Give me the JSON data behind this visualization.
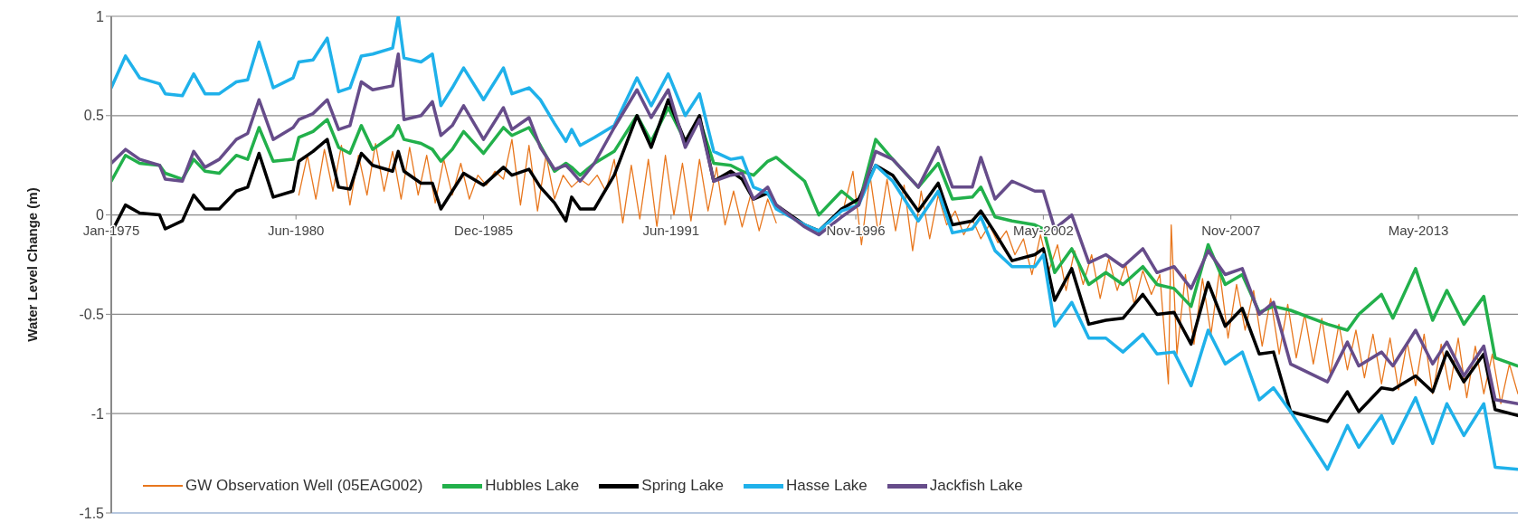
{
  "chart_data": {
    "type": "line",
    "ylabel": "Water Level Change (m)",
    "xlim": [
      "1975-01",
      "2016-04"
    ],
    "xticks": [
      {
        "value": "1975-01",
        "label": "Jan-1975"
      },
      {
        "value": "1980-06",
        "label": "Jun-1980"
      },
      {
        "value": "1985-12",
        "label": "Dec-1985"
      },
      {
        "value": "1991-06",
        "label": "Jun-1991"
      },
      {
        "value": "1996-11",
        "label": "Nov-1996"
      },
      {
        "value": "2002-05",
        "label": "May-2002"
      },
      {
        "value": "2007-11",
        "label": "Nov-2007"
      },
      {
        "value": "2013-05",
        "label": "May-2013"
      }
    ],
    "ylim": [
      -1.5,
      1
    ],
    "yticks": [
      -1.5,
      -1,
      -0.5,
      0,
      0.5,
      1
    ],
    "grid": "y",
    "legend": "bottom",
    "marker": "none",
    "line_style": "solid",
    "x": [
      "1975-01",
      "1975-06",
      "1975-11",
      "1976-06",
      "1976-08",
      "1977-02",
      "1977-06",
      "1977-10",
      "1978-03",
      "1978-09",
      "1979-01",
      "1979-05",
      "1979-10",
      "1980-05",
      "1980-07",
      "1980-12",
      "1981-05",
      "1981-09",
      "1982-01",
      "1982-05",
      "1982-09",
      "1983-04",
      "1983-06",
      "1983-08",
      "1984-02",
      "1984-06",
      "1984-09",
      "1985-01",
      "1985-05",
      "1985-12",
      "1986-07",
      "1986-10",
      "1987-04",
      "1987-08",
      "1988-01",
      "1988-05",
      "1988-07",
      "1988-10",
      "1989-03",
      "1989-10",
      "1990-06",
      "1990-11",
      "1991-05",
      "1991-11",
      "1992-04",
      "1992-09",
      "1993-03",
      "1993-07",
      "1993-11",
      "1994-04",
      "1994-07",
      "1995-05",
      "1995-10",
      "1996-06",
      "1996-12",
      "1997-06",
      "1997-12",
      "1998-09",
      "1999-04",
      "1999-09",
      "2000-04",
      "2000-07",
      "2000-12",
      "2001-06",
      "2002-02",
      "2002-05",
      "2002-09",
      "2003-03",
      "2003-09",
      "2004-03",
      "2004-09",
      "2005-04",
      "2005-09",
      "2006-03",
      "2006-09",
      "2007-03",
      "2007-09",
      "2008-03",
      "2008-09",
      "2009-02",
      "2009-08",
      "2010-09",
      "2011-04",
      "2011-08",
      "2012-04",
      "2012-08",
      "2013-04",
      "2013-10",
      "2014-03",
      "2014-09",
      "2015-04",
      "2015-08",
      "2016-04"
    ],
    "series": [
      {
        "name": "GW Observation Well (05EAG002)",
        "color": "#e8771e",
        "x": [
          "1980-07",
          "1980-10",
          "1981-01",
          "1981-04",
          "1981-07",
          "1981-10",
          "1982-01",
          "1982-04",
          "1982-07",
          "1982-10",
          "1983-01",
          "1983-04",
          "1983-07",
          "1983-10",
          "1984-01",
          "1984-04",
          "1984-07",
          "1984-10",
          "1985-01",
          "1985-04",
          "1985-07",
          "1985-10",
          "1986-01",
          "1986-04",
          "1986-07",
          "1986-10",
          "1987-01",
          "1987-04",
          "1987-07",
          "1987-10",
          "1988-01",
          "1988-04",
          "1988-07",
          "1988-10",
          "1989-01",
          "1989-04",
          "1989-07",
          "1989-10",
          "1990-01",
          "1990-04",
          "1990-07",
          "1990-10",
          "1991-01",
          "1991-04",
          "1991-07",
          "1991-10",
          "1992-01",
          "1992-04",
          "1992-07",
          "1992-10",
          "1993-01",
          "1993-04",
          "1993-07",
          "1993-10",
          "1994-01",
          "1994-04",
          "1994-07",
          "1995-07",
          "1996-07",
          "1996-10",
          "1997-01",
          "1997-04",
          "1997-07",
          "1997-10",
          "1998-01",
          "1998-04",
          "1998-07",
          "1998-10",
          "1999-01",
          "1999-04",
          "1999-07",
          "1999-10",
          "2000-01",
          "2000-04",
          "2000-07",
          "2000-10",
          "2001-01",
          "2001-04",
          "2001-07",
          "2001-10",
          "2002-01",
          "2002-04",
          "2002-07",
          "2002-10",
          "2003-01",
          "2003-04",
          "2003-07",
          "2003-10",
          "2004-01",
          "2004-04",
          "2004-07",
          "2004-10",
          "2005-01",
          "2005-04",
          "2005-07",
          "2005-10",
          "2006-01",
          "2006-02",
          "2006-04",
          "2006-07",
          "2006-10",
          "2007-01",
          "2007-04",
          "2007-07",
          "2007-10",
          "2008-01",
          "2008-04",
          "2008-07",
          "2008-10",
          "2009-01",
          "2009-04",
          "2009-07",
          "2009-10",
          "2010-01",
          "2010-04",
          "2010-07",
          "2010-10",
          "2011-01",
          "2011-04",
          "2011-07",
          "2011-10",
          "2012-01",
          "2012-04",
          "2012-07",
          "2012-10",
          "2013-01",
          "2013-04",
          "2013-07",
          "2013-10",
          "2014-01",
          "2014-04",
          "2014-07",
          "2014-10",
          "2015-01",
          "2015-04",
          "2015-07",
          "2015-10",
          "2016-01",
          "2016-04"
        ],
        "values": [
          0.1,
          0.3,
          0.08,
          0.33,
          0.12,
          0.35,
          0.05,
          0.3,
          0.1,
          0.36,
          0.12,
          0.32,
          0.08,
          0.34,
          0.1,
          0.3,
          0.06,
          0.28,
          0.1,
          0.26,
          0.08,
          0.2,
          0.15,
          0.22,
          0.18,
          0.38,
          0.05,
          0.35,
          0.02,
          0.3,
          0.08,
          0.2,
          0.14,
          0.18,
          0.15,
          0.2,
          0.12,
          0.28,
          -0.04,
          0.25,
          -0.02,
          0.28,
          -0.06,
          0.3,
          0.0,
          0.26,
          -0.03,
          0.28,
          0.02,
          0.24,
          -0.05,
          0.12,
          -0.06,
          0.1,
          -0.08,
          0.08,
          -0.04,
          null,
          0.05,
          0.22,
          -0.15,
          0.2,
          -0.1,
          0.18,
          -0.08,
          0.15,
          -0.18,
          0.12,
          -0.12,
          0.1,
          -0.05,
          0.02,
          -0.1,
          -0.02,
          -0.12,
          -0.05,
          -0.14,
          -0.08,
          -0.2,
          -0.12,
          -0.3,
          -0.1,
          -0.28,
          -0.15,
          -0.38,
          -0.18,
          -0.35,
          -0.2,
          -0.42,
          -0.22,
          -0.38,
          -0.25,
          -0.45,
          -0.28,
          -0.4,
          -0.3,
          -0.85,
          -0.05,
          -0.7,
          -0.3,
          -0.65,
          -0.32,
          -0.6,
          -0.28,
          -0.62,
          -0.35,
          -0.58,
          -0.38,
          -0.66,
          -0.42,
          -0.7,
          -0.45,
          -0.72,
          -0.5,
          -0.75,
          -0.52,
          -0.8,
          -0.55,
          -0.78,
          -0.58,
          -0.82,
          -0.6,
          -0.85,
          -0.62,
          -0.88,
          -0.64,
          -0.86,
          -0.6,
          -0.9,
          -0.65,
          -0.88,
          -0.62,
          -0.92,
          -0.66,
          -0.9,
          -0.7,
          -0.95,
          -0.75,
          -0.9
        ]
      },
      {
        "name": "Hubbles Lake",
        "color": "#22b04b",
        "values": [
          0.17,
          0.3,
          0.26,
          0.25,
          0.21,
          0.18,
          0.28,
          0.22,
          0.21,
          0.3,
          0.28,
          0.44,
          0.27,
          0.28,
          0.39,
          0.42,
          0.48,
          0.34,
          0.31,
          0.45,
          0.33,
          0.4,
          0.45,
          0.38,
          0.36,
          0.33,
          0.27,
          0.33,
          0.42,
          0.31,
          0.44,
          0.4,
          0.44,
          0.35,
          0.22,
          0.26,
          0.24,
          0.2,
          0.26,
          0.32,
          0.5,
          0.37,
          0.54,
          0.37,
          0.48,
          0.26,
          0.25,
          0.22,
          0.2,
          0.27,
          0.29,
          0.17,
          0.0,
          0.12,
          0.05,
          0.38,
          0.28,
          0.14,
          0.26,
          0.08,
          0.09,
          0.14,
          -0.01,
          -0.03,
          -0.05,
          -0.07,
          -0.29,
          -0.17,
          -0.35,
          -0.29,
          -0.35,
          -0.26,
          -0.35,
          -0.37,
          -0.46,
          -0.15,
          -0.35,
          -0.3,
          -0.49,
          -0.46,
          -0.48,
          -0.55,
          -0.58,
          -0.5,
          -0.4,
          -0.52,
          -0.27,
          -0.53,
          -0.38,
          -0.55,
          -0.41,
          -0.72,
          -0.76
        ]
      },
      {
        "name": "Spring Lake",
        "color": "#000000",
        "values": [
          -0.09,
          0.05,
          0.01,
          0.0,
          -0.07,
          -0.03,
          0.1,
          0.03,
          0.03,
          0.12,
          0.14,
          0.31,
          0.09,
          0.12,
          0.27,
          0.32,
          0.38,
          0.14,
          0.13,
          0.31,
          0.25,
          0.22,
          0.32,
          0.22,
          0.16,
          0.16,
          0.03,
          0.12,
          0.21,
          0.15,
          0.24,
          0.2,
          0.23,
          0.14,
          0.06,
          -0.03,
          0.09,
          0.03,
          0.03,
          0.2,
          0.5,
          0.34,
          0.58,
          0.37,
          0.5,
          0.17,
          0.22,
          0.18,
          0.08,
          0.11,
          0.05,
          -0.05,
          -0.08,
          0.03,
          0.08,
          0.25,
          0.2,
          0.02,
          0.16,
          -0.05,
          -0.03,
          0.02,
          -0.09,
          -0.23,
          -0.2,
          -0.17,
          -0.43,
          -0.27,
          -0.55,
          -0.53,
          -0.52,
          -0.4,
          -0.5,
          -0.49,
          -0.65,
          -0.34,
          -0.56,
          -0.47,
          -0.7,
          -0.69,
          -0.99,
          -1.04,
          -0.89,
          -0.99,
          -0.87,
          -0.88,
          -0.81,
          -0.89,
          -0.69,
          -0.84,
          -0.7,
          -0.98,
          -1.01
        ]
      },
      {
        "name": "Hasse Lake",
        "color": "#1fb1ea",
        "values": [
          0.64,
          0.8,
          0.69,
          0.66,
          0.61,
          0.6,
          0.71,
          0.61,
          0.61,
          0.67,
          0.68,
          0.87,
          0.64,
          0.69,
          0.77,
          0.78,
          0.89,
          0.62,
          0.64,
          0.8,
          0.81,
          0.84,
          1.0,
          0.79,
          0.77,
          0.81,
          0.55,
          0.64,
          0.74,
          0.58,
          0.74,
          0.61,
          0.64,
          0.58,
          0.46,
          0.37,
          0.43,
          0.35,
          0.39,
          0.45,
          0.69,
          0.55,
          0.71,
          0.5,
          0.61,
          0.32,
          0.28,
          0.29,
          0.14,
          0.11,
          0.03,
          -0.05,
          -0.08,
          0.02,
          0.05,
          0.25,
          0.17,
          -0.03,
          0.12,
          -0.09,
          -0.07,
          -0.01,
          -0.18,
          -0.26,
          -0.26,
          -0.2,
          -0.56,
          -0.44,
          -0.62,
          -0.62,
          -0.69,
          -0.6,
          -0.7,
          -0.69,
          -0.86,
          -0.58,
          -0.75,
          -0.69,
          -0.93,
          -0.87,
          -0.99,
          -1.28,
          -1.06,
          -1.17,
          -1.01,
          -1.15,
          -0.92,
          -1.15,
          -0.95,
          -1.11,
          -0.95,
          -1.27,
          -1.28
        ]
      },
      {
        "name": "Jackfish Lake",
        "color": "#664c8a",
        "values": [
          0.26,
          0.33,
          0.28,
          0.25,
          0.18,
          0.17,
          0.32,
          0.24,
          0.28,
          0.38,
          0.41,
          0.58,
          0.38,
          0.44,
          0.48,
          0.51,
          0.58,
          0.43,
          0.45,
          0.67,
          0.63,
          0.65,
          0.81,
          0.48,
          0.5,
          0.57,
          0.4,
          0.45,
          0.55,
          0.38,
          0.54,
          0.43,
          0.49,
          0.34,
          0.23,
          0.25,
          0.22,
          0.17,
          0.26,
          0.44,
          0.63,
          0.49,
          0.63,
          0.34,
          0.48,
          0.17,
          0.2,
          0.21,
          0.08,
          0.14,
          0.05,
          -0.06,
          -0.1,
          -0.01,
          0.05,
          0.32,
          0.28,
          0.14,
          0.34,
          0.14,
          0.14,
          0.29,
          0.08,
          0.17,
          0.12,
          0.12,
          -0.07,
          0.0,
          -0.24,
          -0.2,
          -0.26,
          -0.17,
          -0.29,
          -0.26,
          -0.37,
          -0.18,
          -0.3,
          -0.27,
          -0.5,
          -0.44,
          -0.75,
          -0.84,
          -0.64,
          -0.76,
          -0.69,
          -0.76,
          -0.58,
          -0.75,
          -0.64,
          -0.81,
          -0.66,
          -0.93,
          -0.95
        ]
      }
    ]
  }
}
